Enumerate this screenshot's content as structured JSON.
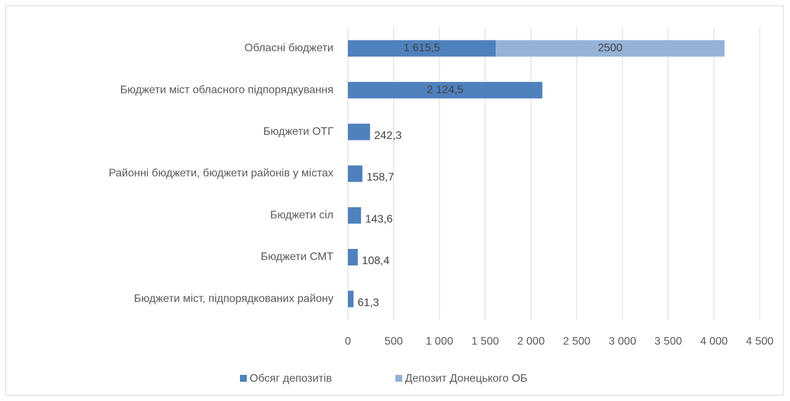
{
  "chart_data": {
    "type": "stacked_barh",
    "categories": [
      "Обласні бюджети",
      "Бюджети міст обласного підпорядкування",
      "Бюджети ОТГ",
      "Районні бюджети, бюджети районів у містах",
      "Бюджети сіл",
      "Бюджети СМТ",
      "Бюджети міст, підпорядкованих району"
    ],
    "series": [
      {
        "name": "Обсяг депозитів",
        "color": "#4f81bd",
        "values": [
          1615.5,
          2124.5,
          242.3,
          158.7,
          143.6,
          108.4,
          61.3
        ],
        "value_labels": [
          "1 615,5",
          "2 124,5",
          "242,3",
          "158,7",
          "143,6",
          "108,4",
          "61,3"
        ]
      },
      {
        "name": "Депозит Донецького ОБ",
        "color": "#95b3d7",
        "values": [
          2500,
          null,
          null,
          null,
          null,
          null,
          null
        ]
      }
    ],
    "xlim": [
      0,
      4500
    ],
    "xticks": [
      0,
      500,
      {
        "value": 1000,
        "label": "1 000"
      },
      {
        "value": 1500,
        "label": "1 500"
      },
      {
        "value": 2000,
        "label": "2 000"
      },
      {
        "value": 2500,
        "label": "2 500"
      },
      {
        "value": 3000,
        "label": "3 000"
      },
      {
        "value": 3500,
        "label": "3 500"
      },
      {
        "value": 4000,
        "label": "4 000"
      },
      {
        "value": 4500,
        "label": "4 500"
      }
    ],
    "grid": true
  }
}
